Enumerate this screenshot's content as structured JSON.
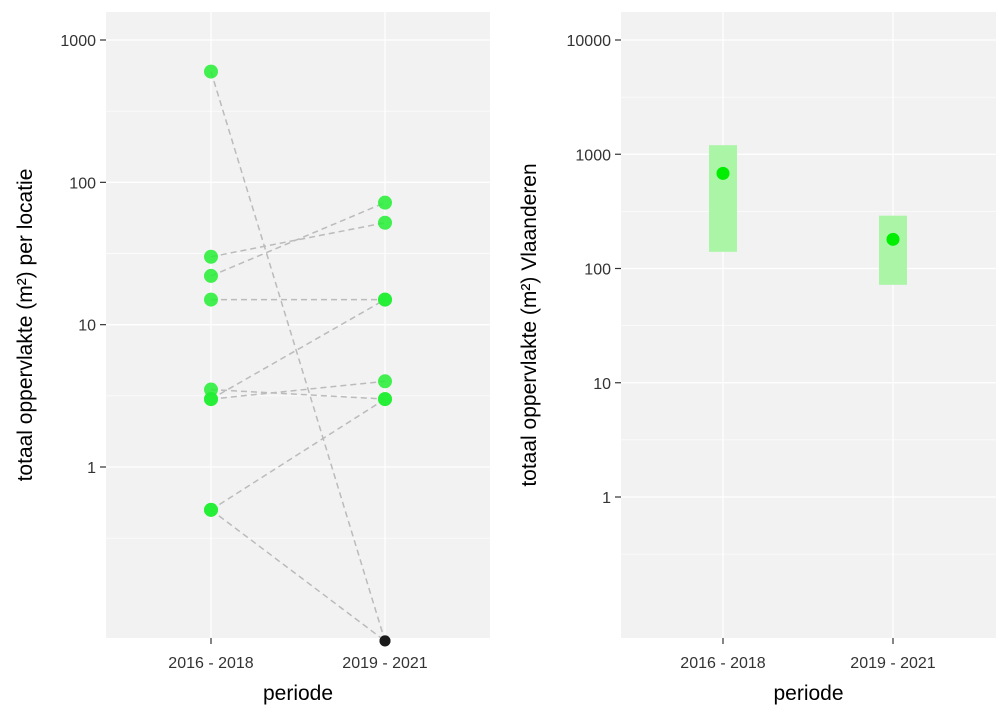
{
  "chart_data": [
    {
      "type": "scatter",
      "scale_y": "log10",
      "xlabel": "periode",
      "ylabel": "totaal oppervlakte (m²) per locatie",
      "categories": [
        "2016 - 2018",
        "2019 - 2021"
      ],
      "y_ticks": [
        1,
        10,
        100,
        1000
      ],
      "y_tick_labels": [
        "1",
        "10",
        "100",
        "1000"
      ],
      "ylim": [
        0.06,
        1600
      ],
      "grid": true,
      "points_color": "#22ee33",
      "zero_point_color": "#1a1a1a",
      "line_color": "#bbbbbb",
      "series": [
        {
          "values": [
            600,
            0.06
          ],
          "zero_marker": [
            false,
            true
          ]
        },
        {
          "values": [
            30,
            52
          ],
          "zero_marker": [
            false,
            false
          ]
        },
        {
          "values": [
            22,
            72
          ],
          "zero_marker": [
            false,
            false
          ]
        },
        {
          "values": [
            15,
            15
          ],
          "zero_marker": [
            false,
            false
          ]
        },
        {
          "values": [
            3.5,
            3
          ],
          "zero_marker": [
            false,
            false
          ]
        },
        {
          "values": [
            3,
            15
          ],
          "zero_marker": [
            false,
            false
          ]
        },
        {
          "values": [
            3,
            4
          ],
          "zero_marker": [
            false,
            false
          ]
        },
        {
          "values": [
            0.5,
            3
          ],
          "zero_marker": [
            false,
            false
          ]
        },
        {
          "values": [
            0.5,
            0.06
          ],
          "zero_marker": [
            false,
            true
          ]
        }
      ]
    },
    {
      "type": "scatter",
      "scale_y": "log10",
      "xlabel": "periode",
      "ylabel": "totaal oppervlakte (m²) Vlaanderen",
      "categories": [
        "2016 - 2018",
        "2019 - 2021"
      ],
      "y_ticks": [
        1,
        10,
        100,
        1000,
        10000
      ],
      "y_tick_labels": [
        "1",
        "10",
        "100",
        "1000",
        "10000"
      ],
      "ylim": [
        0.1,
        18000
      ],
      "grid": true,
      "points_color": "#00ee00",
      "interval_color": "#aaf5a6",
      "values": [
        680,
        180
      ],
      "interval_low": [
        140,
        72
      ],
      "interval_high": [
        1200,
        290
      ]
    }
  ]
}
